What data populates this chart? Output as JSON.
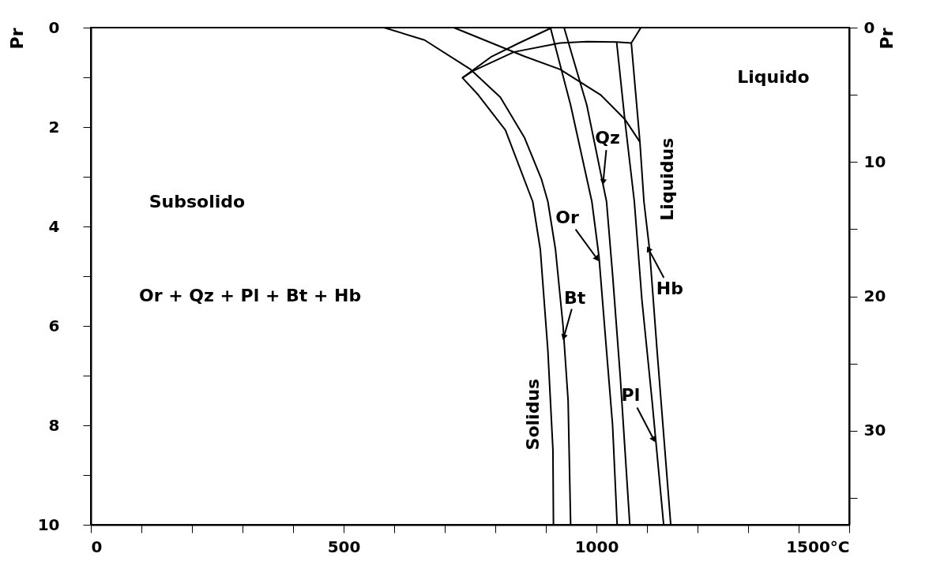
{
  "chart_data": {
    "type": "line",
    "ylabel": "Pr",
    "y2label": "Pr",
    "xlim": [
      0,
      1500
    ],
    "xticks": [
      0,
      {
        "value": 100,
        "label": null
      },
      {
        "value": 200,
        "label": null
      },
      {
        "value": 300,
        "label": null
      },
      {
        "value": 400,
        "label": null
      },
      500,
      {
        "value": 600,
        "label": null
      },
      {
        "value": 700,
        "label": null
      },
      {
        "value": 800,
        "label": null
      },
      {
        "value": 900,
        "label": null
      },
      1000,
      {
        "value": 1100,
        "label": null
      },
      {
        "value": 1200,
        "label": null
      },
      {
        "value": 1300,
        "label": null
      },
      {
        "value": 1400,
        "label": null
      },
      {
        "value": 1500,
        "label": "1500°C"
      }
    ],
    "ylim": [
      10,
      0
    ],
    "yticks": [
      0,
      {
        "value": 1,
        "label": null
      },
      2,
      {
        "value": 3,
        "label": null
      },
      4,
      {
        "value": 5,
        "label": null
      },
      6,
      {
        "value": 7,
        "label": null
      },
      8,
      {
        "value": 9,
        "label": null
      },
      10
    ],
    "y2lim": [
      37,
      0
    ],
    "y2ticks": [
      0,
      {
        "value": 5,
        "label": null
      },
      10,
      {
        "value": 15,
        "label": null
      },
      20,
      {
        "value": 25,
        "label": null
      },
      30,
      {
        "value": 35,
        "label": null
      }
    ],
    "grid": false,
    "marker": "none",
    "line_style": "solid",
    "series": [
      {
        "color": "#000000",
        "x": [
          912,
          847,
          793,
          735,
          766,
          820,
          874,
          889,
          904,
          914,
          915
        ],
        "values": [
          0,
          0.31,
          0.58,
          1.01,
          1.35,
          2.06,
          3.5,
          4.46,
          6.5,
          8.5,
          10
        ]
      },
      {
        "color": "#000000",
        "x": [
          580,
          660,
          751,
          810,
          858,
          891,
          904,
          919,
          934,
          944,
          949
        ],
        "values": [
          0,
          0.25,
          0.84,
          1.4,
          2.22,
          3.04,
          3.5,
          4.46,
          6.0,
          7.5,
          10
        ]
      },
      {
        "color": "#000000",
        "x": [
          735,
          756,
          837,
          928,
          981,
          1040,
          1069
        ],
        "values": [
          1.01,
          0.87,
          0.49,
          0.31,
          0.28,
          0.29,
          0.31
        ]
      },
      {
        "color": "#000000",
        "x": [
          718,
          858,
          928,
          1008,
          1056,
          1086
        ],
        "values": [
          0,
          0.58,
          0.84,
          1.35,
          1.84,
          2.3
        ]
      },
      {
        "color": "#000000",
        "x": [
          909,
          949,
          991,
          1005,
          1020,
          1032,
          1041
        ],
        "values": [
          0,
          1.56,
          3.5,
          4.6,
          6.5,
          8.0,
          10
        ]
      },
      {
        "color": "#000000",
        "x": [
          936,
          981,
          1020,
          1032,
          1047,
          1066
        ],
        "values": [
          0,
          1.56,
          3.5,
          4.97,
          7.0,
          10
        ]
      },
      {
        "color": "#000000",
        "x": [
          1040,
          1056,
          1075,
          1090,
          1110,
          1133
        ],
        "values": [
          0.29,
          1.84,
          3.5,
          5.48,
          7.5,
          10
        ]
      },
      {
        "color": "#000000",
        "x": [
          1088,
          1069,
          1086,
          1094,
          1105,
          1120,
          1147
        ],
        "values": [
          0,
          0.31,
          2.3,
          3.5,
          4.46,
          6.5,
          10
        ]
      }
    ],
    "annotations": [
      "Subsolido",
      "Or + Qz + Pl + Bt + Hb",
      "Liquido",
      {
        "text": "Solidus",
        "x": 910,
        "y": 7.78
      },
      {
        "text": "Liquidus",
        "x": 1093,
        "y": 3.05
      },
      {
        "text": "Qz",
        "x": 1014,
        "y": 3.04
      },
      {
        "text": "Or",
        "x": 997,
        "y": 4.59
      },
      {
        "text": "Bt",
        "x": 937,
        "y": 6.17
      },
      {
        "text": "Hb",
        "x": 1106,
        "y": 4.51
      },
      {
        "text": "Pl",
        "x": 1110,
        "y": 8.22
      }
    ]
  }
}
